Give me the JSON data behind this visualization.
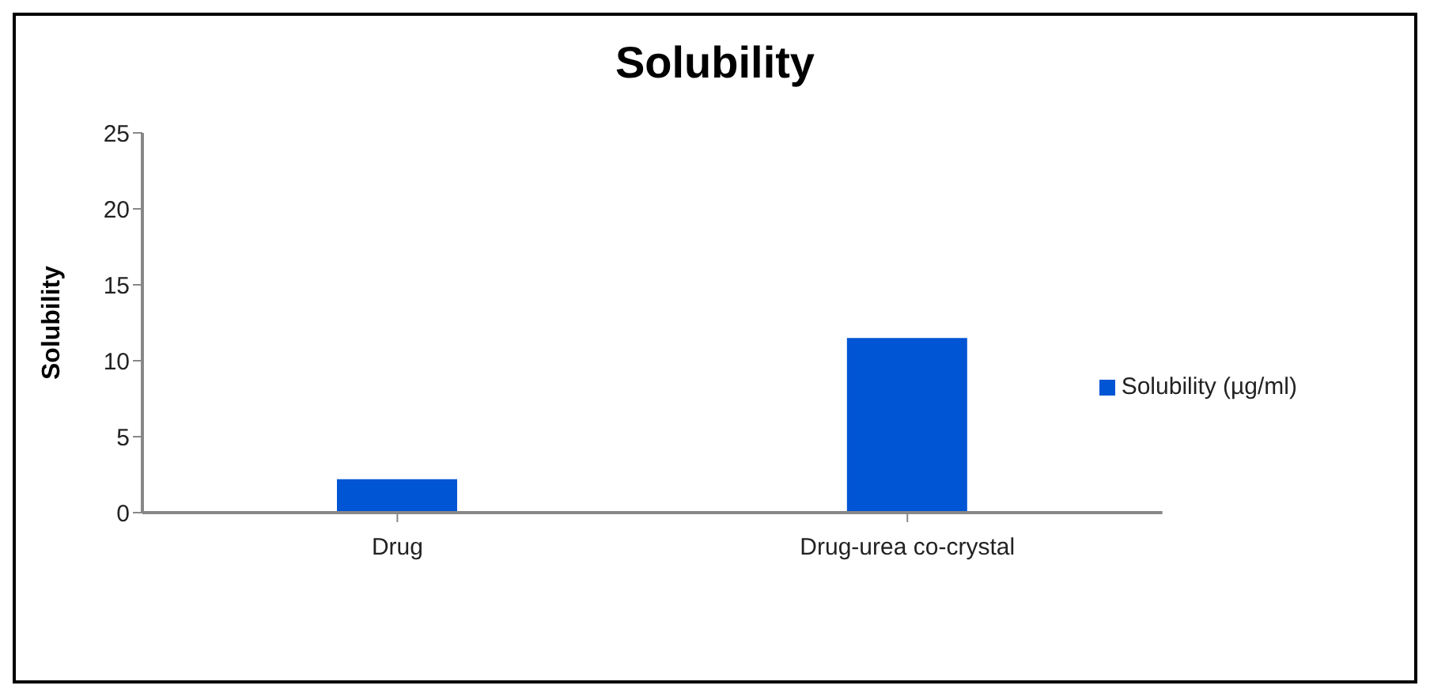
{
  "chart_data": {
    "type": "bar",
    "title": "Solubility",
    "ylabel": "Solubility",
    "categories": [
      "Drug",
      "Drug-urea co-crystal"
    ],
    "series": [
      {
        "name": "Solubility (µg/ml)",
        "color": "#0055d4",
        "values": [
          2.2,
          11.5
        ]
      }
    ],
    "ylim": [
      0,
      25
    ],
    "yticks": [
      0,
      5,
      10,
      15,
      20,
      25
    ],
    "grid": false,
    "legend": "right"
  }
}
